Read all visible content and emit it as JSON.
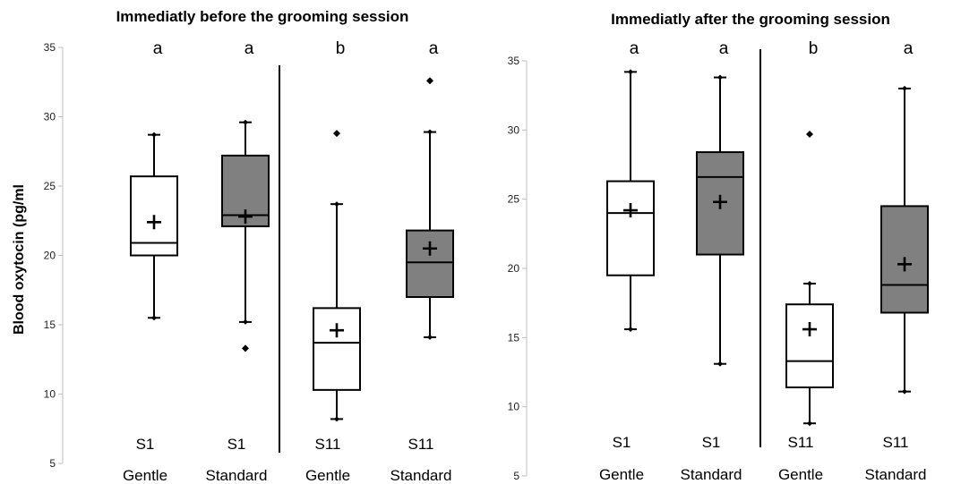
{
  "ylabel": "Blood oxytocin (pg/ml",
  "chart_data": [
    {
      "type": "box",
      "title": "Immediatly before the grooming session",
      "ylim": [
        5,
        35
      ],
      "yticks": [
        5,
        10,
        15,
        20,
        25,
        30,
        35
      ],
      "grid": false,
      "boxes": [
        {
          "session": "S1",
          "group": "Gentle",
          "letter": "a",
          "fill": "#ffffff",
          "whisker_low": 15.5,
          "q1": 20.0,
          "median": 20.9,
          "q3": 25.7,
          "whisker_high": 28.7,
          "mean": 22.4,
          "outliers": []
        },
        {
          "session": "S1",
          "group": "Standard",
          "letter": "a",
          "fill": "#808080",
          "whisker_low": 15.2,
          "q1": 22.1,
          "median": 22.9,
          "q3": 27.2,
          "whisker_high": 29.6,
          "mean": 22.8,
          "outliers": [
            13.3
          ]
        },
        {
          "session": "S11",
          "group": "Gentle",
          "letter": "b",
          "fill": "#ffffff",
          "whisker_low": 8.2,
          "q1": 10.3,
          "median": 13.7,
          "q3": 16.2,
          "whisker_high": 23.7,
          "mean": 14.6,
          "outliers": [
            28.8
          ]
        },
        {
          "session": "S11",
          "group": "Standard",
          "letter": "a",
          "fill": "#808080",
          "whisker_low": 14.1,
          "q1": 17.0,
          "median": 19.5,
          "q3": 21.8,
          "whisker_high": 28.9,
          "mean": 20.5,
          "outliers": [
            32.6
          ]
        }
      ]
    },
    {
      "type": "box",
      "title": "Immediatly after the grooming session",
      "ylim": [
        5,
        35
      ],
      "yticks": [
        5,
        10,
        15,
        20,
        25,
        30,
        35
      ],
      "grid": false,
      "boxes": [
        {
          "session": "S1",
          "group": "Gentle",
          "letter": "a",
          "fill": "#ffffff",
          "whisker_low": 15.6,
          "q1": 19.5,
          "median": 24.0,
          "q3": 26.3,
          "whisker_high": 34.2,
          "mean": 24.2,
          "outliers": []
        },
        {
          "session": "S1",
          "group": "Standard",
          "letter": "a",
          "fill": "#808080",
          "whisker_low": 13.1,
          "q1": 21.0,
          "median": 26.6,
          "q3": 28.4,
          "whisker_high": 33.8,
          "mean": 24.8,
          "outliers": []
        },
        {
          "session": "S11",
          "group": "Gentle",
          "letter": "b",
          "fill": "#ffffff",
          "whisker_low": 8.8,
          "q1": 11.4,
          "median": 13.3,
          "q3": 17.4,
          "whisker_high": 18.9,
          "mean": 15.6,
          "outliers": [
            29.7
          ]
        },
        {
          "session": "S11",
          "group": "Standard",
          "letter": "a",
          "fill": "#808080",
          "whisker_low": 11.1,
          "q1": 16.8,
          "median": 18.8,
          "q3": 24.5,
          "whisker_high": 33.0,
          "mean": 20.3,
          "outliers": []
        }
      ]
    }
  ]
}
